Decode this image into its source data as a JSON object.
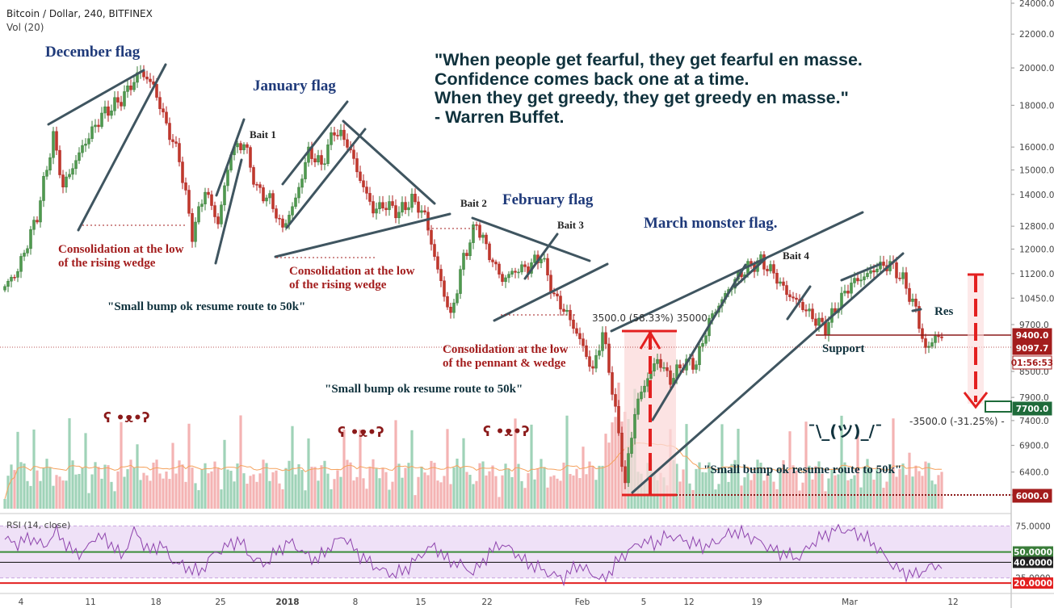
{
  "header": {
    "symbol": "Bitcoin / Dollar, 240, BITFINEX",
    "volume": "Vol (20)",
    "rsi": "RSI (14, close)"
  },
  "quote": {
    "lines": [
      "\"When people get fearful, they get fearful en masse.",
      "Confidence comes back one at a time.",
      "When they get greedy, they get greedy en masse.\"",
      "- Warren Buffet."
    ]
  },
  "colors": {
    "up": "#3a7d3a",
    "down": "#b22222",
    "vol_up": "#9fd3b8",
    "vol_down": "#f4b3b3",
    "line": "#3f5560",
    "flag_title": "#1f3a7a",
    "red_text": "#a31d1d",
    "rsi": "#8e44ad",
    "rsi_band": "#efe1f7"
  },
  "chart_data": {
    "type": "candlestick",
    "title": "Bitcoin / Dollar, 240, BITFINEX",
    "y_scale": "log",
    "ylim": [
      6000,
      24000
    ],
    "y_ticks": [
      "24000.0",
      "22000.0",
      "20000.0",
      "18000.0",
      "16000.0",
      "15000.0",
      "14000.0",
      "12800.0",
      "12000.0",
      "11200.0",
      "10450.0",
      "9700.0",
      "8500.0",
      "7900.0",
      "7400.0",
      "6900.0",
      "6400.0",
      "6000.0"
    ],
    "x_ticks": [
      "4",
      "11",
      "18",
      "25",
      "2018",
      "8",
      "15",
      "22",
      "Feb",
      "5",
      "12",
      "19",
      "Mar",
      "12"
    ],
    "price_path": [
      {
        "i": 0,
        "p": 10800
      },
      {
        "i": 4,
        "p": 11300
      },
      {
        "i": 10,
        "p": 13200
      },
      {
        "i": 15,
        "p": 16500
      },
      {
        "i": 18,
        "p": 14300
      },
      {
        "i": 24,
        "p": 16000
      },
      {
        "i": 30,
        "p": 17500
      },
      {
        "i": 36,
        "p": 18300
      },
      {
        "i": 42,
        "p": 19800
      },
      {
        "i": 46,
        "p": 19000
      },
      {
        "i": 50,
        "p": 17000
      },
      {
        "i": 54,
        "p": 15500
      },
      {
        "i": 58,
        "p": 12500
      },
      {
        "i": 62,
        "p": 14200
      },
      {
        "i": 66,
        "p": 12900
      },
      {
        "i": 70,
        "p": 15800
      },
      {
        "i": 74,
        "p": 16200
      },
      {
        "i": 78,
        "p": 14200
      },
      {
        "i": 82,
        "p": 13800
      },
      {
        "i": 86,
        "p": 12700
      },
      {
        "i": 90,
        "p": 13800
      },
      {
        "i": 94,
        "p": 15800
      },
      {
        "i": 98,
        "p": 15200
      },
      {
        "i": 102,
        "p": 16800
      },
      {
        "i": 106,
        "p": 16200
      },
      {
        "i": 110,
        "p": 14600
      },
      {
        "i": 114,
        "p": 13400
      },
      {
        "i": 118,
        "p": 13600
      },
      {
        "i": 122,
        "p": 13300
      },
      {
        "i": 126,
        "p": 13800
      },
      {
        "i": 130,
        "p": 13200
      },
      {
        "i": 134,
        "p": 11300
      },
      {
        "i": 138,
        "p": 9900
      },
      {
        "i": 142,
        "p": 11700
      },
      {
        "i": 146,
        "p": 12900
      },
      {
        "i": 150,
        "p": 11800
      },
      {
        "i": 154,
        "p": 11000
      },
      {
        "i": 158,
        "p": 11300
      },
      {
        "i": 162,
        "p": 11400
      },
      {
        "i": 166,
        "p": 11800
      },
      {
        "i": 170,
        "p": 10500
      },
      {
        "i": 174,
        "p": 10000
      },
      {
        "i": 178,
        "p": 9300
      },
      {
        "i": 182,
        "p": 8500
      },
      {
        "i": 185,
        "p": 9500
      },
      {
        "i": 188,
        "p": 8100
      },
      {
        "i": 192,
        "p": 6200
      },
      {
        "i": 195,
        "p": 7600
      },
      {
        "i": 198,
        "p": 8200
      },
      {
        "i": 202,
        "p": 8800
      },
      {
        "i": 206,
        "p": 8300
      },
      {
        "i": 210,
        "p": 8700
      },
      {
        "i": 214,
        "p": 8700
      },
      {
        "i": 218,
        "p": 9800
      },
      {
        "i": 222,
        "p": 10400
      },
      {
        "i": 226,
        "p": 11000
      },
      {
        "i": 230,
        "p": 11400
      },
      {
        "i": 234,
        "p": 11600
      },
      {
        "i": 238,
        "p": 11200
      },
      {
        "i": 242,
        "p": 10600
      },
      {
        "i": 246,
        "p": 10300
      },
      {
        "i": 250,
        "p": 9900
      },
      {
        "i": 254,
        "p": 9600
      },
      {
        "i": 258,
        "p": 10300
      },
      {
        "i": 262,
        "p": 10900
      },
      {
        "i": 266,
        "p": 11100
      },
      {
        "i": 270,
        "p": 11400
      },
      {
        "i": 274,
        "p": 11500
      },
      {
        "i": 278,
        "p": 11000
      },
      {
        "i": 282,
        "p": 10100
      },
      {
        "i": 285,
        "p": 9000
      },
      {
        "i": 288,
        "p": 9400
      },
      {
        "i": 290,
        "p": 9300
      }
    ],
    "price_labels": [
      {
        "text": "9400.0",
        "role": "resistance",
        "color": "#a31d1d"
      },
      {
        "text": "9097.7",
        "role": "last",
        "color": "#a31d1d"
      },
      {
        "text": "01:56:53",
        "role": "countdown",
        "color": "#a31d1d"
      },
      {
        "text": "7700.0",
        "role": "target",
        "color": "#1e6b3a"
      },
      {
        "text": "6000.0",
        "role": "low",
        "color": "#a31d1d"
      }
    ],
    "measure_up": "3500.0 (58.33%) 35000",
    "measure_down": "-3500.0 (-31.25%) -",
    "annotations": {
      "flags": [
        "December flag",
        "January flag",
        "February flag",
        "March monster flag."
      ],
      "baits": [
        "Bait 1",
        "Bait 2",
        "Bait 3",
        "Bait 4"
      ],
      "consolidation_1": [
        "Consolidation at the low",
        "of the rising wedge"
      ],
      "consolidation_2": [
        "Consolidation at the low",
        "of the rising wedge"
      ],
      "consolidation_3": [
        "Consolidation at the low",
        "of the pennant & wedge"
      ],
      "bump_1": "\"Small bump ok resume route to 50k\"",
      "bump_2": "\"Small bump ok resume route to 50k\"",
      "bump_3": "\"Small bump ok resume route to 50k\"",
      "bears": [
        "ʕ •ᴥ•ʔ",
        "ʕ •ᴥ•ʔ",
        "ʕ •ᴥ•ʔ"
      ],
      "shrug": "¯\\_(ツ)_/¯",
      "support": "Support",
      "res": "Res"
    },
    "rsi": {
      "labels": [
        "75.0000",
        "50.0000",
        "40.0000",
        "25.0000",
        "20.0000"
      ],
      "values": [
        62,
        58,
        64,
        55,
        70,
        52,
        48,
        66,
        60,
        45,
        72,
        50,
        58,
        40,
        35,
        30,
        48,
        55,
        62,
        44,
        38,
        52,
        60,
        48,
        42,
        55,
        66,
        50,
        40,
        32,
        28,
        35,
        48,
        56,
        42,
        38,
        30,
        45,
        58,
        52,
        40,
        35,
        28,
        25,
        38,
        30,
        22,
        40,
        52,
        60,
        58,
        66,
        62,
        58,
        55,
        62,
        70,
        66,
        60,
        52,
        48,
        44,
        58,
        66,
        72,
        70,
        65,
        55,
        40,
        30,
        28,
        35,
        38
      ]
    }
  }
}
